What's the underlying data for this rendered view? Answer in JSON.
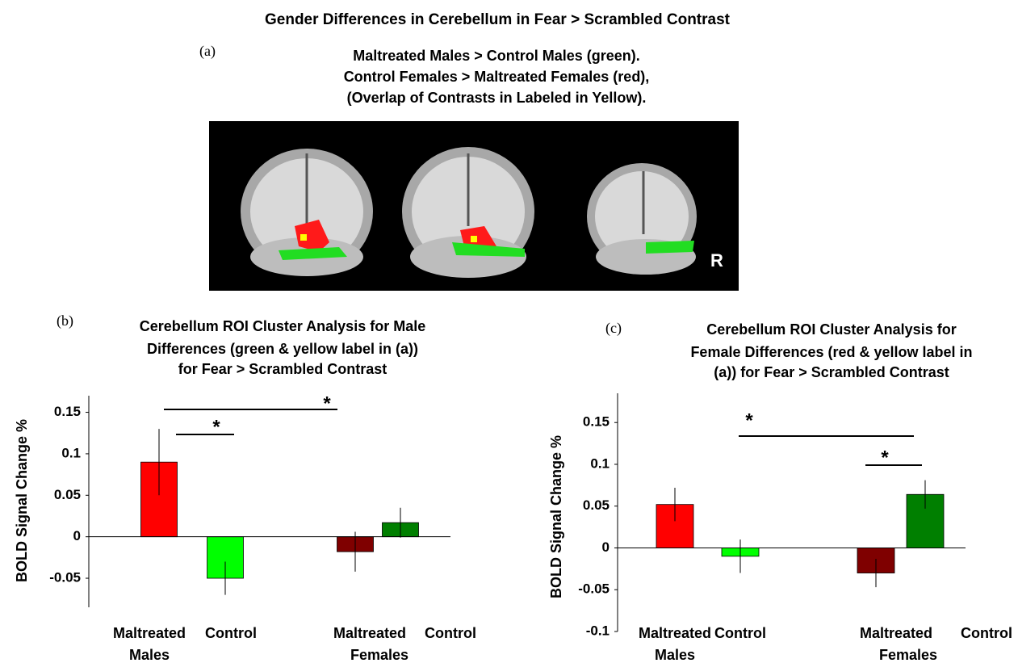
{
  "title": "Gender Differences in Cerebellum in Fear > Scrambled Contrast",
  "panel_a": {
    "label": "(a)",
    "caption": [
      "Maltreated Males > Control  Males (green).",
      "Control Females  > Maltreated Females  (red),",
      "(Overlap of Contrasts in Labeled in Yellow)."
    ],
    "orientation_label": "R"
  },
  "chart_data": [
    {
      "type": "bar",
      "panel_label": "(b)",
      "title": [
        "Cerebellum ROI Cluster Analysis for Male",
        "Differences (green & yellow label in (a))",
        "for Fear > Scrambled Contrast"
      ],
      "y_label": "BOLD Signal Change %",
      "categories": [
        "Maltreated",
        "Control",
        "Maltreated",
        "Control"
      ],
      "groups": [
        "Males",
        "Females"
      ],
      "values": [
        0.09,
        -0.05,
        -0.018,
        0.017
      ],
      "errors": [
        0.04,
        0.02,
        0.024,
        0.018
      ],
      "colors": [
        "#ff0000",
        "#00ff00",
        "#7f0000",
        "#007f00"
      ],
      "ylim": [
        -0.085,
        0.17
      ],
      "yticks": [
        -0.05,
        0,
        0.05,
        0.1,
        0.15
      ],
      "significance": [
        "*",
        "*"
      ]
    },
    {
      "type": "bar",
      "panel_label": "(c)",
      "title": [
        "Cerebellum ROI Cluster Analysis for",
        "Female Differences (red & yellow label in",
        "(a)) for Fear > Scrambled Contrast"
      ],
      "y_label": "BOLD Signal Change %",
      "categories": [
        "Maltreated",
        "Control",
        "Maltreated",
        "Control"
      ],
      "groups": [
        "Males",
        "Females"
      ],
      "values": [
        0.052,
        -0.01,
        -0.03,
        0.064
      ],
      "errors": [
        0.02,
        0.02,
        0.017,
        0.017
      ],
      "colors": [
        "#ff0000",
        "#00ff00",
        "#7f0000",
        "#007f00"
      ],
      "ylim": [
        -0.1,
        0.185
      ],
      "yticks": [
        -0.1,
        -0.05,
        0,
        0.05,
        0.1,
        0.15
      ],
      "significance": [
        "*",
        "*"
      ]
    }
  ]
}
